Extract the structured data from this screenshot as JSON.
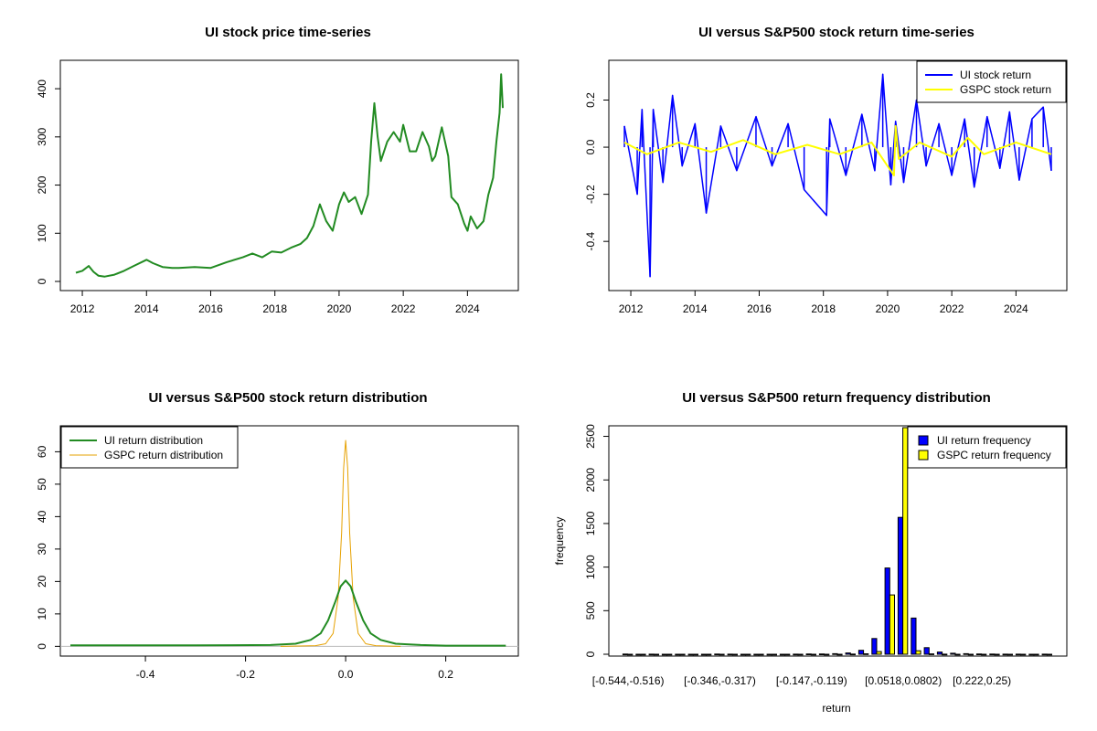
{
  "colors": {
    "ui_price": "#228B22",
    "ui_return": "#0000FF",
    "gspc_return": "#FFFF00",
    "ui_density": "#228B22",
    "gspc_density": "#E6A100",
    "ui_hist": "#0000FF",
    "gspc_hist": "#FFFF00"
  },
  "chart_data": [
    {
      "type": "line",
      "title": "UI stock price time-series",
      "xlabel": "",
      "ylabel": "",
      "xlim": [
        2011.6,
        2025.3
      ],
      "ylim": [
        0,
        440
      ],
      "x_ticks": [
        2012,
        2014,
        2016,
        2018,
        2020,
        2022,
        2024
      ],
      "x_tick_labels": [
        "2012",
        "2014",
        "2016",
        "2018",
        "2020",
        "2022",
        "2024"
      ],
      "y_ticks": [
        0,
        100,
        200,
        300,
        400
      ],
      "y_tick_labels": [
        "0",
        "100",
        "200",
        "300",
        "400"
      ],
      "series": [
        {
          "x": [
            2011.8,
            2012.0,
            2012.2,
            2012.35,
            2012.5,
            2012.7,
            2013.0,
            2013.3,
            2013.6,
            2014.0,
            2014.2,
            2014.5,
            2014.8,
            2015.0,
            2015.5,
            2016.0,
            2016.5,
            2017.0,
            2017.3,
            2017.6,
            2017.9,
            2018.2,
            2018.5,
            2018.8,
            2019.0,
            2019.2,
            2019.4,
            2019.6,
            2019.8,
            2020.0,
            2020.15,
            2020.3,
            2020.5,
            2020.7,
            2020.9,
            2021.0,
            2021.1,
            2021.2,
            2021.3,
            2021.5,
            2021.7,
            2021.9,
            2022.0,
            2022.2,
            2022.4,
            2022.6,
            2022.8,
            2022.9,
            2023.0,
            2023.2,
            2023.4,
            2023.5,
            2023.7,
            2023.9,
            2024.0,
            2024.1,
            2024.3,
            2024.5,
            2024.65,
            2024.8,
            2024.9,
            2025.0,
            2025.05,
            2025.1
          ],
          "y": [
            18,
            22,
            32,
            20,
            12,
            10,
            14,
            22,
            32,
            45,
            38,
            30,
            28,
            28,
            30,
            28,
            40,
            50,
            58,
            50,
            62,
            60,
            70,
            78,
            90,
            115,
            160,
            125,
            105,
            160,
            185,
            165,
            175,
            140,
            180,
            290,
            370,
            300,
            250,
            290,
            310,
            290,
            325,
            270,
            270,
            310,
            280,
            250,
            260,
            320,
            260,
            175,
            160,
            120,
            105,
            135,
            110,
            125,
            180,
            215,
            290,
            350,
            430,
            360
          ]
        }
      ]
    },
    {
      "type": "line",
      "title": "UI versus S&P500 stock return time-series",
      "xlabel": "",
      "ylabel": "",
      "xlim": [
        2011.6,
        2025.3
      ],
      "ylim": [
        -0.57,
        0.33
      ],
      "x_ticks": [
        2012,
        2014,
        2016,
        2018,
        2020,
        2022,
        2024
      ],
      "x_tick_labels": [
        "2012",
        "2014",
        "2016",
        "2018",
        "2020",
        "2022",
        "2024"
      ],
      "y_ticks": [
        -0.4,
        -0.2,
        0.0,
        0.2
      ],
      "y_tick_labels": [
        "-0.4",
        "-0.2",
        "0.0",
        "0.2"
      ],
      "legend": [
        "UI stock return",
        "GSPC stock return"
      ],
      "legend_position": "top-right",
      "series": [
        {
          "name": "UI stock return",
          "x": [
            2011.8,
            2012.2,
            2012.35,
            2012.6,
            2012.7,
            2013.0,
            2013.3,
            2013.6,
            2014.0,
            2014.35,
            2014.8,
            2015.3,
            2015.9,
            2016.4,
            2016.9,
            2017.4,
            2018.1,
            2018.2,
            2018.7,
            2019.2,
            2019.6,
            2019.85,
            2020.1,
            2020.25,
            2020.5,
            2020.9,
            2021.2,
            2021.6,
            2022.0,
            2022.4,
            2022.7,
            2023.1,
            2023.5,
            2023.8,
            2024.1,
            2024.5,
            2024.85,
            2025.1
          ],
          "y": [
            0.09,
            -0.2,
            0.16,
            -0.55,
            0.16,
            -0.15,
            0.22,
            -0.08,
            0.1,
            -0.28,
            0.09,
            -0.1,
            0.13,
            -0.08,
            0.1,
            -0.18,
            -0.29,
            0.12,
            -0.12,
            0.14,
            -0.1,
            0.31,
            -0.16,
            0.11,
            -0.15,
            0.2,
            -0.08,
            0.1,
            -0.12,
            0.12,
            -0.17,
            0.13,
            -0.09,
            0.15,
            -0.14,
            0.12,
            0.17,
            -0.1
          ]
        },
        {
          "name": "GSPC stock return",
          "x": [
            2011.8,
            2012.5,
            2013.5,
            2014.5,
            2015.5,
            2016.5,
            2017.5,
            2018.5,
            2019.5,
            2020.2,
            2020.25,
            2020.35,
            2021.0,
            2022.0,
            2022.5,
            2023.0,
            2024.0,
            2025.1
          ],
          "y": [
            0.02,
            -0.03,
            0.02,
            -0.02,
            0.03,
            -0.03,
            0.01,
            -0.03,
            0.02,
            -0.12,
            0.09,
            -0.05,
            0.02,
            -0.04,
            0.04,
            -0.03,
            0.02,
            -0.03
          ]
        }
      ]
    },
    {
      "type": "line",
      "title": "UI versus S&P500 stock return distribution",
      "xlabel": "",
      "ylabel": "",
      "xlim": [
        -0.57,
        0.345
      ],
      "ylim": [
        -3,
        68
      ],
      "x_ticks": [
        -0.4,
        -0.2,
        0.0,
        0.2
      ],
      "x_tick_labels": [
        "-0.4",
        "-0.2",
        "0.0",
        "0.2"
      ],
      "y_ticks": [
        0,
        10,
        20,
        30,
        40,
        50,
        60
      ],
      "y_tick_labels": [
        "0",
        "10",
        "20",
        "30",
        "40",
        "50",
        "60"
      ],
      "legend": [
        "UI return distribution",
        "GSPC return distribution"
      ],
      "legend_position": "top-left",
      "series": [
        {
          "name": "UI return distribution",
          "x": [
            -0.55,
            -0.3,
            -0.15,
            -0.1,
            -0.07,
            -0.05,
            -0.035,
            -0.02,
            -0.01,
            0.0,
            0.01,
            0.02,
            0.035,
            0.05,
            0.07,
            0.1,
            0.15,
            0.2,
            0.32
          ],
          "y": [
            0.3,
            0.3,
            0.4,
            0.8,
            2.0,
            4.0,
            8.0,
            14.0,
            18.5,
            20.3,
            18.5,
            14.0,
            8.0,
            4.0,
            2.0,
            0.8,
            0.4,
            0.2,
            0.2
          ]
        },
        {
          "name": "GSPC return distribution",
          "x": [
            -0.13,
            -0.06,
            -0.04,
            -0.025,
            -0.015,
            -0.008,
            -0.004,
            0.0,
            0.004,
            0.008,
            0.015,
            0.025,
            0.04,
            0.06,
            0.11
          ],
          "y": [
            0.0,
            0.2,
            0.8,
            4.0,
            15.0,
            35.0,
            55.0,
            63.5,
            55.0,
            35.0,
            15.0,
            4.0,
            0.8,
            0.2,
            0.0
          ]
        }
      ]
    },
    {
      "type": "bar",
      "title": "UI versus S&P500 return frequency distribution",
      "xlabel": "return",
      "ylabel": "frequency",
      "ylim": [
        0,
        2600
      ],
      "y_ticks": [
        0,
        500,
        1000,
        1500,
        2000,
        2500
      ],
      "y_tick_labels": [
        "0",
        "500",
        "1000",
        "1500",
        "2000",
        "2500"
      ],
      "x_tick_labels": [
        "[-0.544,-0.516)",
        "[-0.346,-0.317)",
        "[-0.147,-0.119)",
        "[0.0518,0.0802)",
        "[0.222,0.25)"
      ],
      "x_tick_positions": [
        0,
        7,
        14,
        21,
        27
      ],
      "legend": [
        "UI return frequency",
        "GSPC return frequency"
      ],
      "legend_position": "top-right",
      "series": [
        {
          "name": "UI return frequency",
          "values": [
            2,
            0,
            1,
            0,
            0,
            0,
            0,
            2,
            1,
            0,
            0,
            0,
            0,
            1,
            3,
            3,
            6,
            15,
            45,
            180,
            990,
            1570,
            415,
            75,
            25,
            12,
            6,
            3,
            2,
            1,
            1,
            0,
            1
          ]
        },
        {
          "name": "GSPC return frequency",
          "values": [
            0,
            0,
            0,
            0,
            0,
            0,
            0,
            0,
            0,
            0,
            0,
            0,
            0,
            0,
            0,
            0,
            0,
            2,
            5,
            30,
            680,
            2600,
            40,
            4,
            1,
            0,
            0,
            0,
            0,
            0,
            0,
            0,
            0
          ]
        }
      ]
    }
  ]
}
